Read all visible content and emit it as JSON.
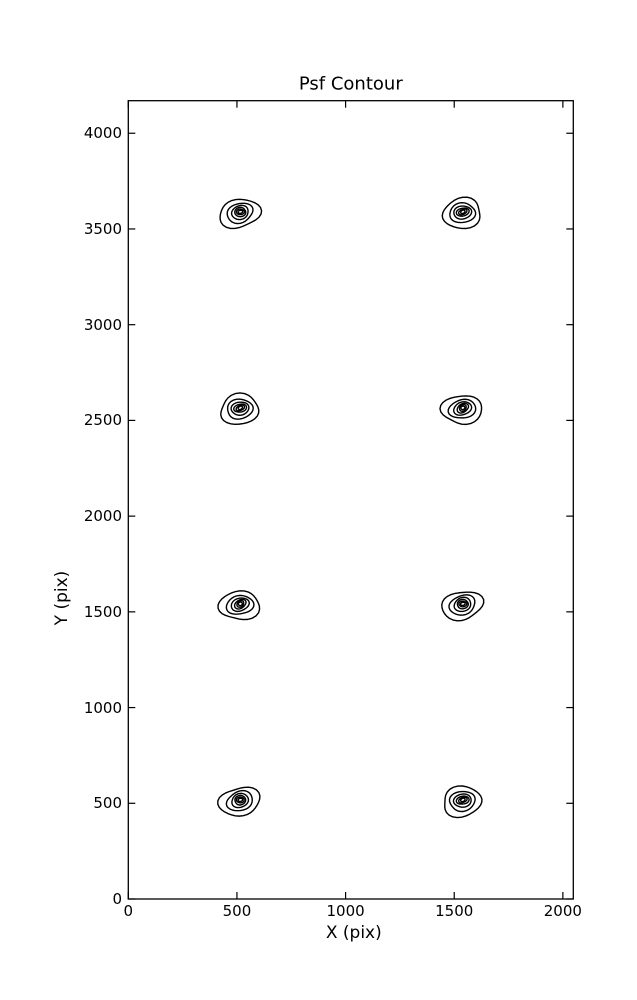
{
  "chart_data": {
    "type": "contour",
    "title": "Psf Contour",
    "xlabel": "X (pix)",
    "ylabel": "Y (pix)",
    "xlim": [
      0,
      2048
    ],
    "ylim": [
      0,
      4170
    ],
    "xticks": [
      0,
      500,
      1000,
      1500,
      2000
    ],
    "yticks": [
      0,
      500,
      1000,
      1500,
      2000,
      2500,
      3000,
      3500,
      4000
    ],
    "grid": false,
    "legend_position": "none",
    "tick_direction": "in",
    "n_contour_levels": 6,
    "psf_centers": [
      {
        "x": 512,
        "y": 512
      },
      {
        "x": 1536,
        "y": 512
      },
      {
        "x": 512,
        "y": 1536
      },
      {
        "x": 1536,
        "y": 1536
      },
      {
        "x": 512,
        "y": 2560
      },
      {
        "x": 1536,
        "y": 2560
      },
      {
        "x": 512,
        "y": 3584
      },
      {
        "x": 1536,
        "y": 3584
      }
    ],
    "line_color": "#000000",
    "background_color": "#ffffff"
  }
}
